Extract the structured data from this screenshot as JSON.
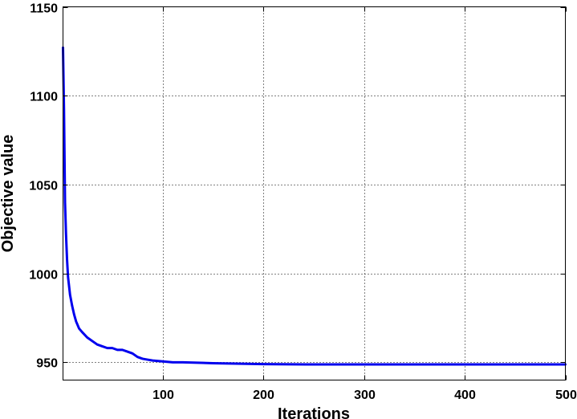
{
  "chart_data": {
    "type": "line",
    "title": "",
    "xlabel": "Iterations",
    "ylabel": "Objective value",
    "xlim": [
      1,
      500
    ],
    "ylim": [
      940,
      1150
    ],
    "xticks": [
      100,
      200,
      300,
      400,
      500
    ],
    "yticks": [
      950,
      1000,
      1050,
      1100,
      1150
    ],
    "grid": true,
    "series": [
      {
        "color": "#0000ee",
        "x": [
          1,
          2,
          3,
          4,
          5,
          6,
          7,
          8,
          10,
          12,
          14,
          17,
          20,
          25,
          30,
          35,
          40,
          45,
          50,
          55,
          60,
          65,
          70,
          75,
          80,
          85,
          90,
          100,
          110,
          120,
          150,
          200,
          250,
          300,
          350,
          400,
          450,
          500
        ],
        "y": [
          1127,
          1092,
          1040,
          1022,
          1008,
          998,
          993,
          988,
          982,
          977,
          973,
          969,
          967,
          964,
          962,
          960,
          959,
          958,
          958,
          957,
          957,
          956,
          955,
          953,
          952,
          951.5,
          951,
          950.5,
          950,
          950,
          949.5,
          949,
          948.8,
          948.8,
          948.8,
          948.8,
          948.8,
          948.8
        ]
      }
    ]
  }
}
